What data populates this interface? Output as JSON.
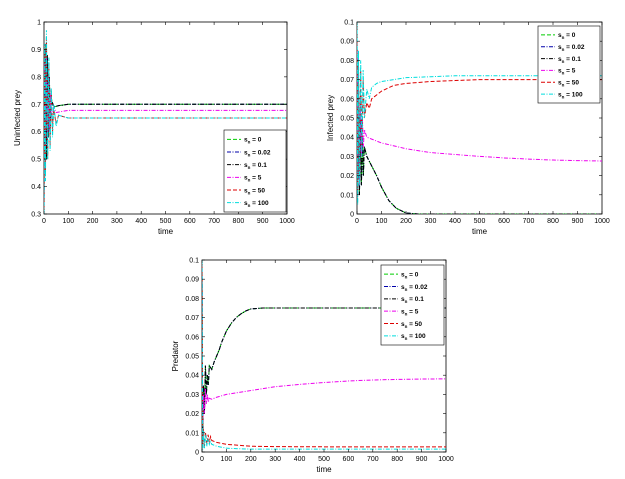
{
  "chart_data": [
    {
      "type": "line",
      "xlabel": "time",
      "ylabel": "Uninfected prey",
      "xlim": [
        0,
        1000
      ],
      "ylim": [
        0.3,
        1
      ],
      "xticks": [
        0,
        100,
        200,
        300,
        400,
        500,
        600,
        700,
        800,
        900,
        1000
      ],
      "yticks": [
        0.3,
        0.4,
        0.5,
        0.6,
        0.7,
        0.8,
        0.9,
        1
      ],
      "ytick_labels": [
        "0.3",
        "0.4",
        "0.5",
        "0.6",
        "0.7",
        "0.8",
        "0.9",
        "1"
      ],
      "legend_position": "bottom-right",
      "legend": [
        {
          "pre": "s",
          "sub": "n",
          "post": " = 0",
          "color": "#00cc00"
        },
        {
          "pre": "s",
          "sub": "n",
          "post": " = 0.02",
          "color": "#0000aa"
        },
        {
          "pre": "s",
          "sub": "n",
          "post": " = 0.1",
          "color": "#000000"
        },
        {
          "pre": "s",
          "sub": "n",
          "post": " = 5",
          "color": "#ee00ee"
        },
        {
          "pre": "s",
          "sub": "n",
          "post": " = 50",
          "color": "#dd0000"
        },
        {
          "pre": "s",
          "sub": "n",
          "post": " = 100",
          "color": "#00dddd"
        }
      ],
      "series": [
        {
          "color": "#00cc00",
          "x": [
            0,
            2,
            5,
            8,
            10,
            14,
            18,
            22,
            26,
            30,
            40,
            60,
            100,
            1000
          ],
          "y": [
            0.3,
            0.8,
            0.55,
            0.92,
            0.5,
            0.88,
            0.58,
            0.8,
            0.63,
            0.72,
            0.69,
            0.695,
            0.7,
            0.7
          ]
        },
        {
          "color": "#0000aa",
          "x": [
            0,
            2,
            5,
            8,
            10,
            14,
            18,
            22,
            26,
            30,
            40,
            60,
            100,
            1000
          ],
          "y": [
            0.3,
            0.8,
            0.55,
            0.92,
            0.5,
            0.88,
            0.58,
            0.8,
            0.63,
            0.72,
            0.69,
            0.695,
            0.7,
            0.7
          ]
        },
        {
          "color": "#000000",
          "x": [
            0,
            2,
            5,
            8,
            10,
            14,
            18,
            22,
            26,
            30,
            40,
            60,
            100,
            1000
          ],
          "y": [
            0.3,
            0.8,
            0.55,
            0.92,
            0.5,
            0.88,
            0.58,
            0.8,
            0.63,
            0.72,
            0.69,
            0.695,
            0.7,
            0.7
          ]
        },
        {
          "color": "#ee00ee",
          "x": [
            0,
            3,
            6,
            10,
            14,
            18,
            22,
            26,
            30,
            40,
            50,
            100,
            1000
          ],
          "y": [
            0.3,
            0.85,
            0.5,
            0.9,
            0.55,
            0.8,
            0.6,
            0.74,
            0.65,
            0.69,
            0.67,
            0.678,
            0.678
          ]
        },
        {
          "color": "#dd0000",
          "x": [
            0,
            3,
            6,
            10,
            15,
            20,
            25,
            30,
            35,
            40,
            50,
            60,
            100,
            1000
          ],
          "y": [
            0.3,
            0.9,
            0.45,
            0.95,
            0.5,
            0.85,
            0.55,
            0.75,
            0.6,
            0.68,
            0.63,
            0.66,
            0.65,
            0.65
          ]
        },
        {
          "color": "#00dddd",
          "x": [
            0,
            3,
            6,
            10,
            15,
            20,
            25,
            30,
            35,
            40,
            50,
            60,
            100,
            1000
          ],
          "y": [
            0.3,
            0.92,
            0.42,
            0.97,
            0.5,
            0.87,
            0.53,
            0.76,
            0.58,
            0.7,
            0.62,
            0.66,
            0.65,
            0.65
          ]
        }
      ]
    },
    {
      "type": "line",
      "xlabel": "time",
      "ylabel": "Infected prey",
      "xlim": [
        0,
        1000
      ],
      "ylim": [
        0,
        0.1
      ],
      "xticks": [
        0,
        100,
        200,
        300,
        400,
        500,
        600,
        700,
        800,
        900,
        1000
      ],
      "yticks": [
        0,
        0.01,
        0.02,
        0.03,
        0.04,
        0.05,
        0.06,
        0.07,
        0.08,
        0.09,
        0.1
      ],
      "ytick_labels": [
        "0",
        "0.01",
        "0.02",
        "0.03",
        "0.04",
        "0.05",
        "0.06",
        "0.07",
        "0.08",
        "0.09",
        "0.1"
      ],
      "legend_position": "top-right",
      "legend": [
        {
          "pre": "s",
          "sub": "n",
          "post": " = 0",
          "color": "#00cc00"
        },
        {
          "pre": "s",
          "sub": "n",
          "post": " = 0.02",
          "color": "#0000aa"
        },
        {
          "pre": "s",
          "sub": "n",
          "post": " = 0.1",
          "color": "#000000"
        },
        {
          "pre": "s",
          "sub": "n",
          "post": " = 5",
          "color": "#ee00ee"
        },
        {
          "pre": "s",
          "sub": "n",
          "post": " = 50",
          "color": "#dd0000"
        },
        {
          "pre": "s",
          "sub": "n",
          "post": " = 100",
          "color": "#00dddd"
        }
      ],
      "series": [
        {
          "color": "#00cc00",
          "x": [
            0,
            3,
            6,
            10,
            14,
            18,
            22,
            26,
            30,
            40,
            60,
            80,
            100,
            130,
            160,
            200,
            250,
            1000
          ],
          "y": [
            0.09,
            0.02,
            0.06,
            0.01,
            0.05,
            0.015,
            0.04,
            0.02,
            0.035,
            0.03,
            0.025,
            0.02,
            0.014,
            0.007,
            0.003,
            0.0005,
            0,
            0
          ]
        },
        {
          "color": "#0000aa",
          "x": [
            0,
            3,
            6,
            10,
            14,
            18,
            22,
            26,
            30,
            40,
            60,
            80,
            100,
            130,
            160,
            200,
            250,
            1000
          ],
          "y": [
            0.09,
            0.02,
            0.06,
            0.01,
            0.05,
            0.015,
            0.04,
            0.02,
            0.035,
            0.03,
            0.025,
            0.02,
            0.014,
            0.007,
            0.003,
            0.0005,
            0,
            0
          ]
        },
        {
          "color": "#000000",
          "x": [
            0,
            3,
            6,
            10,
            14,
            18,
            22,
            26,
            30,
            40,
            60,
            80,
            100,
            130,
            160,
            200,
            250,
            1000
          ],
          "y": [
            0.09,
            0.02,
            0.06,
            0.01,
            0.05,
            0.015,
            0.04,
            0.02,
            0.035,
            0.03,
            0.025,
            0.02,
            0.014,
            0.007,
            0.003,
            0.0005,
            0,
            0
          ]
        },
        {
          "color": "#ee00ee",
          "x": [
            0,
            3,
            6,
            10,
            14,
            18,
            22,
            26,
            30,
            40,
            60,
            100,
            200,
            300,
            400,
            500,
            600,
            700,
            800,
            900,
            1000
          ],
          "y": [
            0.09,
            0.02,
            0.07,
            0.015,
            0.06,
            0.03,
            0.05,
            0.035,
            0.044,
            0.04,
            0.039,
            0.037,
            0.034,
            0.032,
            0.031,
            0.03,
            0.0292,
            0.0286,
            0.0281,
            0.0278,
            0.0276
          ]
        },
        {
          "color": "#dd0000",
          "x": [
            0,
            3,
            6,
            10,
            15,
            20,
            25,
            30,
            40,
            50,
            60,
            80,
            100,
            150,
            200,
            300,
            400,
            500,
            700,
            1000
          ],
          "y": [
            0.09,
            0.01,
            0.08,
            0.02,
            0.075,
            0.035,
            0.07,
            0.05,
            0.058,
            0.055,
            0.06,
            0.062,
            0.064,
            0.067,
            0.068,
            0.069,
            0.0695,
            0.07,
            0.07,
            0.07
          ]
        },
        {
          "color": "#00dddd",
          "x": [
            0,
            3,
            6,
            10,
            15,
            20,
            25,
            30,
            40,
            50,
            60,
            80,
            100,
            150,
            200,
            300,
            400,
            500,
            700,
            1000
          ],
          "y": [
            0.1,
            0.005,
            0.085,
            0.015,
            0.08,
            0.03,
            0.075,
            0.05,
            0.065,
            0.06,
            0.066,
            0.068,
            0.069,
            0.07,
            0.071,
            0.0715,
            0.072,
            0.072,
            0.072,
            0.072
          ]
        }
      ]
    },
    {
      "type": "line",
      "xlabel": "time",
      "ylabel": "Predator",
      "xlim": [
        0,
        1000
      ],
      "ylim": [
        0,
        0.1
      ],
      "xticks": [
        0,
        100,
        200,
        300,
        400,
        500,
        600,
        700,
        800,
        900,
        1000
      ],
      "yticks": [
        0,
        0.01,
        0.02,
        0.03,
        0.04,
        0.05,
        0.06,
        0.07,
        0.08,
        0.09,
        0.1
      ],
      "ytick_labels": [
        "0",
        "0.01",
        "0.02",
        "0.03",
        "0.04",
        "0.05",
        "0.06",
        "0.07",
        "0.08",
        "0.09",
        "0.1"
      ],
      "legend_position": "top-right",
      "legend": [
        {
          "pre": "s",
          "sub": "n",
          "post": " = 0",
          "color": "#00cc00"
        },
        {
          "pre": "s",
          "sub": "n",
          "post": " = 0.02",
          "color": "#0000aa"
        },
        {
          "pre": "s",
          "sub": "n",
          "post": " = 0.1",
          "color": "#000000"
        },
        {
          "pre": "s",
          "sub": "n",
          "post": " = 5",
          "color": "#ee00ee"
        },
        {
          "pre": "s",
          "sub": "n",
          "post": " = 50",
          "color": "#dd0000"
        },
        {
          "pre": "s",
          "sub": "n",
          "post": " = 100",
          "color": "#00dddd"
        }
      ],
      "series": [
        {
          "color": "#00cc00",
          "x": [
            0,
            3,
            6,
            10,
            14,
            18,
            22,
            26,
            30,
            40,
            50,
            60,
            70,
            80,
            90,
            100,
            120,
            140,
            160,
            180,
            200,
            250,
            300,
            1000
          ],
          "y": [
            0.1,
            0.01,
            0.035,
            0.02,
            0.045,
            0.03,
            0.04,
            0.035,
            0.045,
            0.043,
            0.047,
            0.05,
            0.053,
            0.057,
            0.06,
            0.063,
            0.067,
            0.07,
            0.072,
            0.0735,
            0.0745,
            0.075,
            0.075,
            0.075
          ]
        },
        {
          "color": "#0000aa",
          "x": [
            0,
            3,
            6,
            10,
            14,
            18,
            22,
            26,
            30,
            40,
            50,
            60,
            70,
            80,
            90,
            100,
            120,
            140,
            160,
            180,
            200,
            250,
            300,
            1000
          ],
          "y": [
            0.1,
            0.01,
            0.035,
            0.02,
            0.045,
            0.03,
            0.04,
            0.035,
            0.045,
            0.043,
            0.047,
            0.05,
            0.053,
            0.057,
            0.06,
            0.063,
            0.067,
            0.07,
            0.072,
            0.0735,
            0.0745,
            0.075,
            0.075,
            0.075
          ]
        },
        {
          "color": "#000000",
          "x": [
            0,
            3,
            6,
            10,
            14,
            18,
            22,
            26,
            30,
            40,
            50,
            60,
            70,
            80,
            90,
            100,
            120,
            140,
            160,
            180,
            200,
            250,
            300,
            1000
          ],
          "y": [
            0.1,
            0.01,
            0.035,
            0.02,
            0.045,
            0.03,
            0.04,
            0.035,
            0.045,
            0.043,
            0.047,
            0.05,
            0.053,
            0.057,
            0.06,
            0.063,
            0.067,
            0.07,
            0.072,
            0.0735,
            0.0745,
            0.075,
            0.075,
            0.075
          ]
        },
        {
          "color": "#ee00ee",
          "x": [
            0,
            3,
            6,
            10,
            14,
            18,
            22,
            26,
            30,
            40,
            60,
            100,
            200,
            300,
            400,
            500,
            600,
            700,
            800,
            900,
            1000
          ],
          "y": [
            0.1,
            0.015,
            0.03,
            0.02,
            0.033,
            0.025,
            0.03,
            0.026,
            0.028,
            0.0275,
            0.0285,
            0.03,
            0.032,
            0.034,
            0.0352,
            0.0362,
            0.037,
            0.0375,
            0.0378,
            0.038,
            0.0381
          ]
        },
        {
          "color": "#dd0000",
          "x": [
            0,
            3,
            6,
            10,
            15,
            20,
            25,
            30,
            35,
            40,
            50,
            60,
            80,
            100,
            150,
            200,
            300,
            500,
            1000
          ],
          "y": [
            0.1,
            0.002,
            0.012,
            0.003,
            0.01,
            0.004,
            0.009,
            0.005,
            0.008,
            0.006,
            0.0055,
            0.005,
            0.0045,
            0.004,
            0.0035,
            0.003,
            0.0028,
            0.0027,
            0.0027
          ]
        },
        {
          "color": "#00dddd",
          "x": [
            0,
            3,
            6,
            10,
            15,
            20,
            25,
            30,
            35,
            40,
            50,
            60,
            80,
            100,
            150,
            200,
            300,
            500,
            1000
          ],
          "y": [
            0.1,
            0.001,
            0.011,
            0.002,
            0.009,
            0.003,
            0.007,
            0.004,
            0.006,
            0.004,
            0.0035,
            0.003,
            0.0025,
            0.002,
            0.0017,
            0.0015,
            0.0015,
            0.0015,
            0.0015
          ]
        }
      ]
    }
  ]
}
